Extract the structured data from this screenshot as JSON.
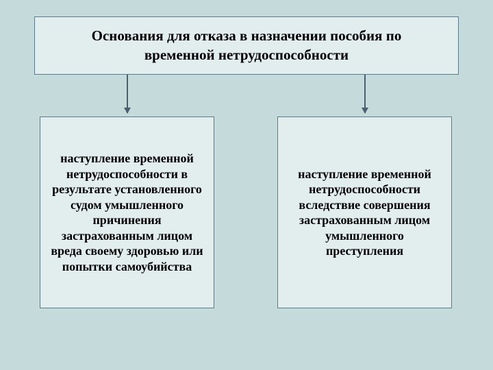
{
  "diagram": {
    "type": "flowchart",
    "background_color": "#c5dbdb",
    "box_fill": "#e2edee",
    "box_border": "#5a7a8a",
    "arrow_color": "#4a6070",
    "header": {
      "text": "Основания для отказа в назначении пособия по временной нетрудоспособности",
      "fontsize": 21,
      "fontweight": "bold"
    },
    "children": [
      {
        "text": "наступление временной нетрудоспособности в результате установленного судом умышленного причинения застрахованным лицом вреда своему здоровью или попытки самоубийства",
        "fontsize": 18,
        "fontweight": "bold"
      },
      {
        "text": "наступление временной нетрудоспособности вследствие совершения застрахованным лицом умышленного преступления",
        "fontsize": 18,
        "fontweight": "bold"
      }
    ]
  }
}
